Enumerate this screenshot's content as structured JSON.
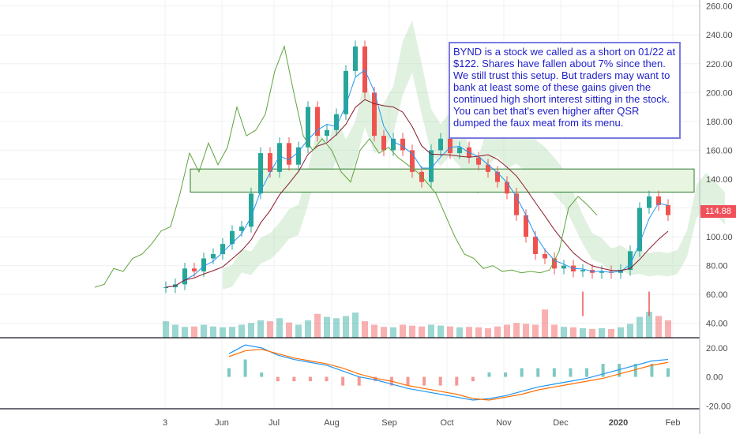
{
  "colors": {
    "up": "#26a69a",
    "down": "#ef5350",
    "conversion_line": "#2196f3",
    "base_line": "#8b1a2b",
    "lagging_span": "#5fa33c",
    "cloud_bull": "#a5d6a7",
    "cloud_bear": "#ef9a9a",
    "macd": "#2196f3",
    "signal": "#ff6d00",
    "annotation_text": "#1e1ec8",
    "zone_fill": "#e8f5e0",
    "zone_border": "#2e7d32",
    "price_badge": "#f0505a"
  },
  "annotation": {
    "text": "BYND is a stock we called as a short on 01/22 at $122. Shares have fallen about 7% since then. We still trust this setup. But traders may want to bank at least some of these gains given the continued high short interest sitting in the stock. You can bet that's even higher after QSR dumped the faux meat from its menu."
  },
  "last_price": "114.88",
  "chart_data": [
    {
      "type": "candlestick",
      "x_ticks": [
        "3",
        "Jun",
        "Jul",
        "Aug",
        "Sep",
        "Oct",
        "Nov",
        "Dec",
        "2020",
        "Feb"
      ],
      "y_ticks": [
        "260.00",
        "240.00",
        "220.00",
        "200.00",
        "180.00",
        "160.00",
        "140.00",
        "120.00",
        "100.00",
        "80.00",
        "60.00",
        "40.00"
      ],
      "ylim": [
        30,
        262
      ],
      "price_path": [
        [
          0,
          65
        ],
        [
          1,
          67
        ],
        [
          2,
          78
        ],
        [
          3,
          76
        ],
        [
          4,
          85
        ],
        [
          5,
          88
        ],
        [
          6,
          95
        ],
        [
          7,
          104
        ],
        [
          8,
          107
        ],
        [
          9,
          130
        ],
        [
          10,
          158
        ],
        [
          11,
          145
        ],
        [
          12,
          165
        ],
        [
          13,
          150
        ],
        [
          14,
          162
        ],
        [
          15,
          190
        ],
        [
          16,
          170
        ],
        [
          17,
          174
        ],
        [
          18,
          185
        ],
        [
          19,
          215
        ],
        [
          20,
          232
        ],
        [
          21,
          200
        ],
        [
          22,
          170
        ],
        [
          23,
          160
        ],
        [
          24,
          168
        ],
        [
          25,
          160
        ],
        [
          26,
          145
        ],
        [
          27,
          138
        ],
        [
          28,
          160
        ],
        [
          29,
          168
        ],
        [
          30,
          158
        ],
        [
          31,
          162
        ],
        [
          32,
          155
        ],
        [
          33,
          150
        ],
        [
          34,
          145
        ],
        [
          35,
          138
        ],
        [
          36,
          130
        ],
        [
          37,
          115
        ],
        [
          38,
          100
        ],
        [
          39,
          88
        ],
        [
          40,
          85
        ],
        [
          41,
          78
        ],
        [
          42,
          80
        ],
        [
          43,
          76
        ],
        [
          44,
          77
        ],
        [
          45,
          75
        ],
        [
          46,
          76
        ],
        [
          47,
          75
        ],
        [
          48,
          77
        ],
        [
          49,
          90
        ],
        [
          50,
          120
        ],
        [
          51,
          128
        ],
        [
          52,
          122
        ],
        [
          53,
          115
        ]
      ],
      "volume": [
        38,
        30,
        25,
        26,
        30,
        26,
        24,
        25,
        30,
        34,
        40,
        38,
        45,
        35,
        30,
        40,
        55,
        48,
        45,
        50,
        58,
        38,
        30,
        25,
        24,
        30,
        28,
        26,
        30,
        28,
        26,
        24,
        25,
        24,
        22,
        26,
        30,
        34,
        32,
        30,
        65,
        30,
        25,
        24,
        22,
        20,
        22,
        20,
        24,
        32,
        48,
        60,
        50,
        40
      ],
      "zone": [
        131,
        147
      ],
      "vertical_markers_x": [
        44,
        51
      ]
    },
    {
      "type": "line",
      "series": [
        {
          "name": "",
          "values": [
            16,
            22,
            20,
            15,
            12,
            10,
            8,
            4,
            0,
            -2,
            -5,
            -8,
            -10,
            -12,
            -14,
            -16,
            -15,
            -13,
            -10,
            -7,
            -5,
            -3,
            -1,
            2,
            5,
            8,
            11,
            12
          ]
        },
        {
          "name": "",
          "values": [
            14,
            18,
            19,
            16,
            13,
            11,
            9,
            6,
            2,
            -1,
            -3,
            -6,
            -8,
            -10,
            -12,
            -15,
            -16,
            -14,
            -12,
            -9,
            -7,
            -5,
            -3,
            -1,
            2,
            5,
            8,
            10
          ]
        }
      ],
      "y_ticks": [
        "20.00",
        "0.00",
        "-20.00"
      ],
      "ylim": [
        -22,
        27
      ]
    }
  ]
}
